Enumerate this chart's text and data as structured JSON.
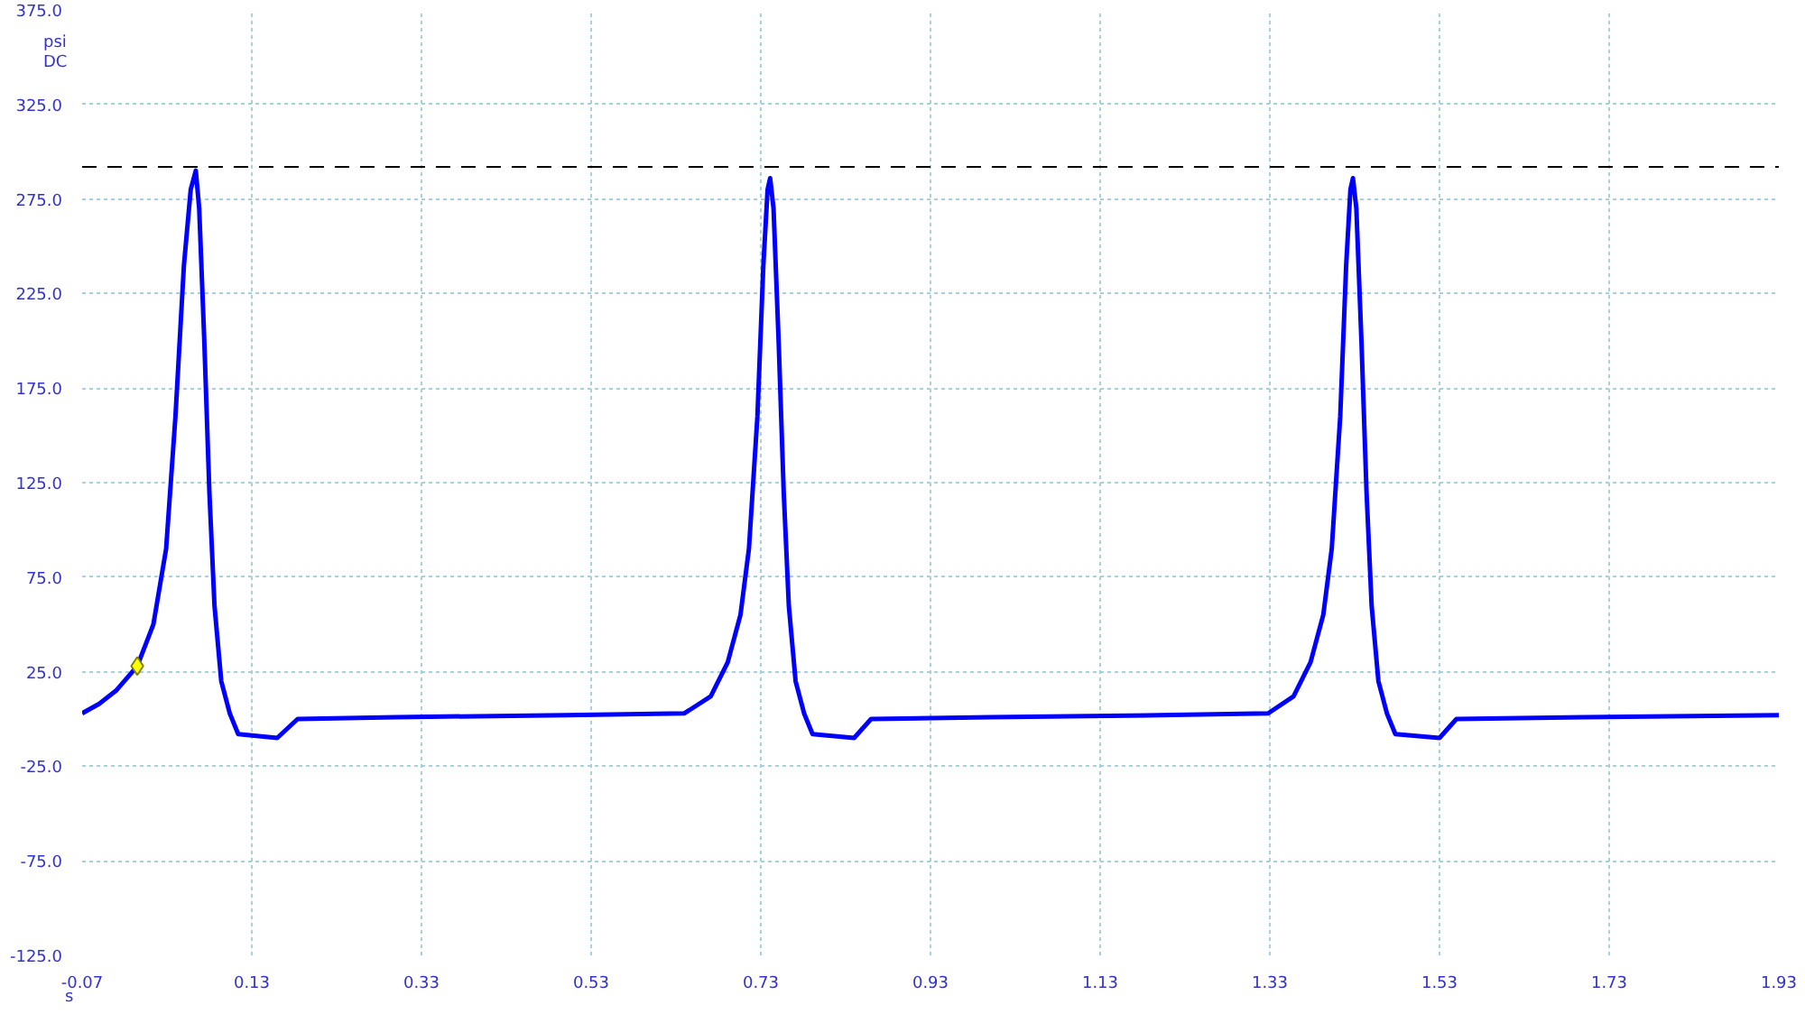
{
  "chart_data": {
    "type": "line",
    "ylabel": "psi",
    "xlabel": "s",
    "annotations": [
      "DC"
    ],
    "xlim": [
      -0.07,
      1.93
    ],
    "ylim": [
      -125,
      375
    ],
    "xticks": [
      -0.07,
      0.13,
      0.33,
      0.53,
      0.73,
      0.93,
      1.13,
      1.33,
      1.53,
      1.73,
      1.93
    ],
    "yticks": [
      {
        "value": -125,
        "label": "-125.0"
      },
      {
        "value": -75,
        "label": "-75.0"
      },
      {
        "value": -25,
        "label": "-25.0"
      },
      {
        "value": 25,
        "label": "25.0"
      },
      {
        "value": 75,
        "label": "75.0"
      },
      {
        "value": 125,
        "label": "125.0"
      },
      {
        "value": 175,
        "label": "175.0"
      },
      {
        "value": 225,
        "label": "225.0"
      },
      {
        "value": 275,
        "label": "275.0"
      },
      {
        "value": 325,
        "label": "325.0"
      },
      {
        "value": 375,
        "label": "375.0"
      }
    ],
    "grid": true,
    "line_style": "solid",
    "marker": "none",
    "ref_lines": [
      {
        "axis": "y",
        "value": 292,
        "color": "#000000",
        "line_style": "dashed"
      }
    ],
    "series": [
      {
        "color": "#0000ff",
        "x": [
          -0.07,
          -0.05,
          -0.03,
          -0.005,
          0.014,
          0.029,
          0.04,
          0.05,
          0.058,
          0.064,
          0.068,
          0.074,
          0.08,
          0.086,
          0.094,
          0.104,
          0.114,
          0.16,
          0.184,
          0.3,
          0.5,
          0.64,
          0.671,
          0.691,
          0.706,
          0.716,
          0.726,
          0.733,
          0.738,
          0.741,
          0.745,
          0.751,
          0.757,
          0.763,
          0.771,
          0.781,
          0.791,
          0.84,
          0.86,
          1.0,
          1.2,
          1.328,
          1.358,
          1.378,
          1.393,
          1.403,
          1.413,
          1.42,
          1.425,
          1.428,
          1.432,
          1.438,
          1.444,
          1.45,
          1.458,
          1.468,
          1.478,
          1.53,
          1.55,
          1.7,
          1.93
        ],
        "values": [
          3,
          8,
          15,
          28,
          50,
          90,
          160,
          240,
          280,
          290,
          270,
          200,
          120,
          60,
          20,
          3,
          -8,
          -10,
          0,
          1,
          2,
          3,
          12,
          30,
          55,
          90,
          160,
          240,
          280,
          286,
          270,
          200,
          120,
          60,
          20,
          3,
          -8,
          -10,
          0,
          1,
          2,
          3,
          12,
          30,
          55,
          90,
          160,
          240,
          280,
          286,
          270,
          200,
          120,
          60,
          20,
          3,
          -8,
          -10,
          0,
          1,
          2
        ]
      },
      {
        "type": "scatter",
        "marker": "diamond",
        "color": "#ffff00",
        "x": [
          -0.005
        ],
        "values": [
          28
        ]
      }
    ]
  }
}
